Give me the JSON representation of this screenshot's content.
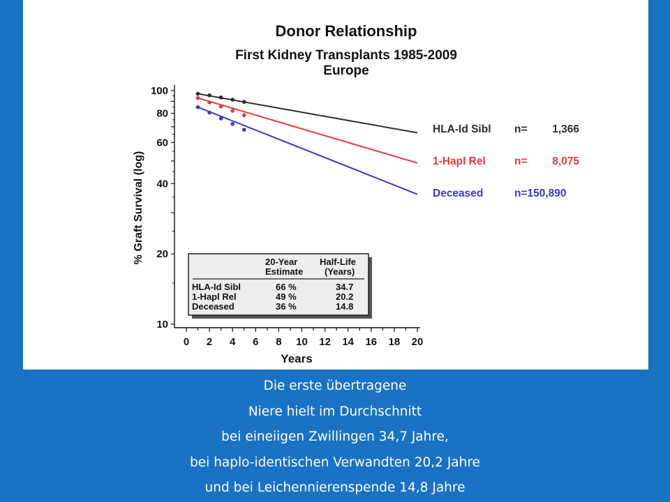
{
  "colors": {
    "background": "#1a72c4",
    "panel": "#ffffff",
    "caption_text": "#ffffff"
  },
  "chart_data": {
    "type": "line",
    "title": "Donor Relationship",
    "subtitle_lines": [
      "First Kidney Transplants 1985-2009",
      "Europe"
    ],
    "xlabel": "Years",
    "ylabel": "% Graft Survival (log)",
    "xlim": [
      0,
      20
    ],
    "ylim": [
      10,
      100
    ],
    "y_scale": "log",
    "x_ticks": [
      "0",
      "2",
      "4",
      "6",
      "8",
      "10",
      "12",
      "14",
      "16",
      "18",
      "20"
    ],
    "y_ticks": [
      "100",
      "80",
      "60",
      "40",
      "20",
      "10"
    ],
    "y_tick_values": [
      100,
      80,
      60,
      40,
      20,
      10
    ],
    "series": [
      {
        "name": "HLA-Id Sibl",
        "n_label": "n=",
        "n_value": "1,366",
        "color": "#2b2b2b",
        "points": [
          [
            1,
            97
          ],
          [
            2,
            95.5
          ],
          [
            3,
            93.5
          ],
          [
            4,
            91.5
          ],
          [
            5,
            89.5
          ]
        ],
        "line": [
          [
            1,
            97
          ],
          [
            20,
            66
          ]
        ]
      },
      {
        "name": "1-Hapl Rel",
        "n_label": "n=",
        "n_value": "8,075",
        "color": "#e53a3a",
        "points": [
          [
            1,
            93
          ],
          [
            2,
            89
          ],
          [
            3,
            85.5
          ],
          [
            4,
            82
          ],
          [
            5,
            78.5
          ]
        ],
        "line": [
          [
            1,
            93
          ],
          [
            20,
            49
          ]
        ]
      },
      {
        "name": "Deceased",
        "n_label": "n=150,890",
        "n_value": "",
        "color": "#3a3ac8",
        "points": [
          [
            1,
            85
          ],
          [
            2,
            80.5
          ],
          [
            3,
            76
          ],
          [
            4,
            72
          ],
          [
            5,
            68
          ]
        ],
        "line": [
          [
            1,
            85
          ],
          [
            20,
            36
          ]
        ]
      }
    ],
    "legend_position": "right",
    "table": {
      "headers": [
        [
          "",
          ""
        ],
        [
          "20-Year",
          "Estimate"
        ],
        [
          "Half-Life",
          "(Years)"
        ]
      ],
      "rows": [
        [
          "HLA-Id Sibl",
          "66 %",
          "34.7"
        ],
        [
          "1-Hapl Rel",
          "49 %",
          "20.2"
        ],
        [
          "Deceased",
          "36 %",
          "14.8"
        ]
      ]
    }
  },
  "caption": {
    "lines": [
      "Die erste übertragene",
      "Niere hielt im Durchschnitt",
      "bei eineiigen Zwillingen 34,7 Jahre,",
      "bei haplo-identischen Verwandten 20,2 Jahre",
      "und bei Leichennierenspende  14,8 Jahre"
    ]
  }
}
